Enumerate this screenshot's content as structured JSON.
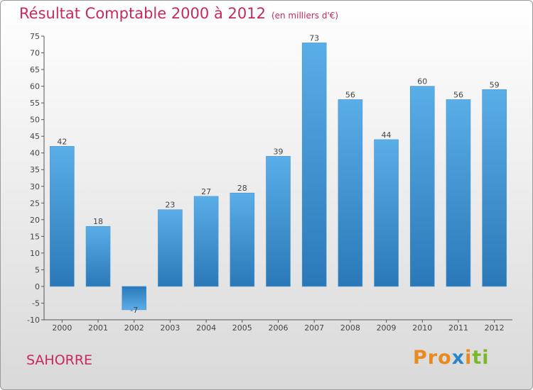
{
  "chart_data": {
    "type": "bar",
    "title": "Résultat Comptable 2000 à 2012",
    "subtitle": "(en milliers d'€)",
    "categories": [
      "2000",
      "2001",
      "2002",
      "2003",
      "2004",
      "2005",
      "2006",
      "2007",
      "2008",
      "2009",
      "2010",
      "2011",
      "2012"
    ],
    "values": [
      42,
      18,
      -7,
      23,
      27,
      28,
      39,
      73,
      56,
      44,
      60,
      56,
      59
    ],
    "ylim": [
      -10,
      75
    ],
    "yticks": [
      -10,
      -5,
      0,
      5,
      10,
      15,
      20,
      25,
      30,
      35,
      40,
      45,
      50,
      55,
      60,
      65,
      70,
      75
    ],
    "xlabel": "",
    "ylabel": "",
    "grid": false
  },
  "commune": "SAHORRE",
  "logo": {
    "letters": [
      "P",
      "r",
      "o",
      "x",
      "i",
      "t",
      "i"
    ]
  },
  "colors": {
    "bar_top": "#5aaee8",
    "bar_bottom": "#2a78b8",
    "title": "#c8295c",
    "logo": [
      "#e98a1e",
      "#e98a1e",
      "#e98a1e",
      "#2a86c8",
      "#e98a1e",
      "#7ab82a",
      "#7ab82a"
    ]
  }
}
